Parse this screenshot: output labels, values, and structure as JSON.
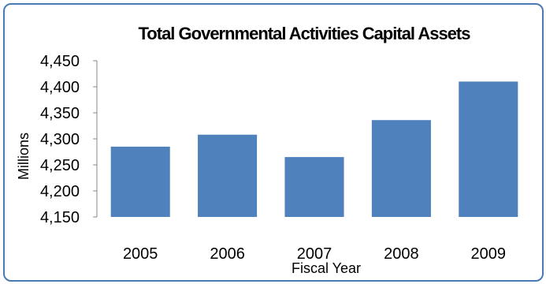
{
  "chart_data": {
    "type": "bar",
    "title": "Total Governmental Activities Capital Assets",
    "xlabel": "Fiscal Year",
    "ylabel": "Millions",
    "categories": [
      "2005",
      "2006",
      "2007",
      "2008",
      "2009"
    ],
    "values": [
      4285,
      4308,
      4265,
      4336,
      4410
    ],
    "ylim": [
      4150,
      4450
    ],
    "yticks": [
      "4,150",
      "4,200",
      "4,250",
      "4,300",
      "4,350",
      "4,400",
      "4,450"
    ],
    "ytick_values": [
      4150,
      4200,
      4250,
      4300,
      4350,
      4400,
      4450
    ],
    "grid": false,
    "legend": "none",
    "bar_color": "#4f81bd",
    "border_color": "#4a7ab5"
  }
}
